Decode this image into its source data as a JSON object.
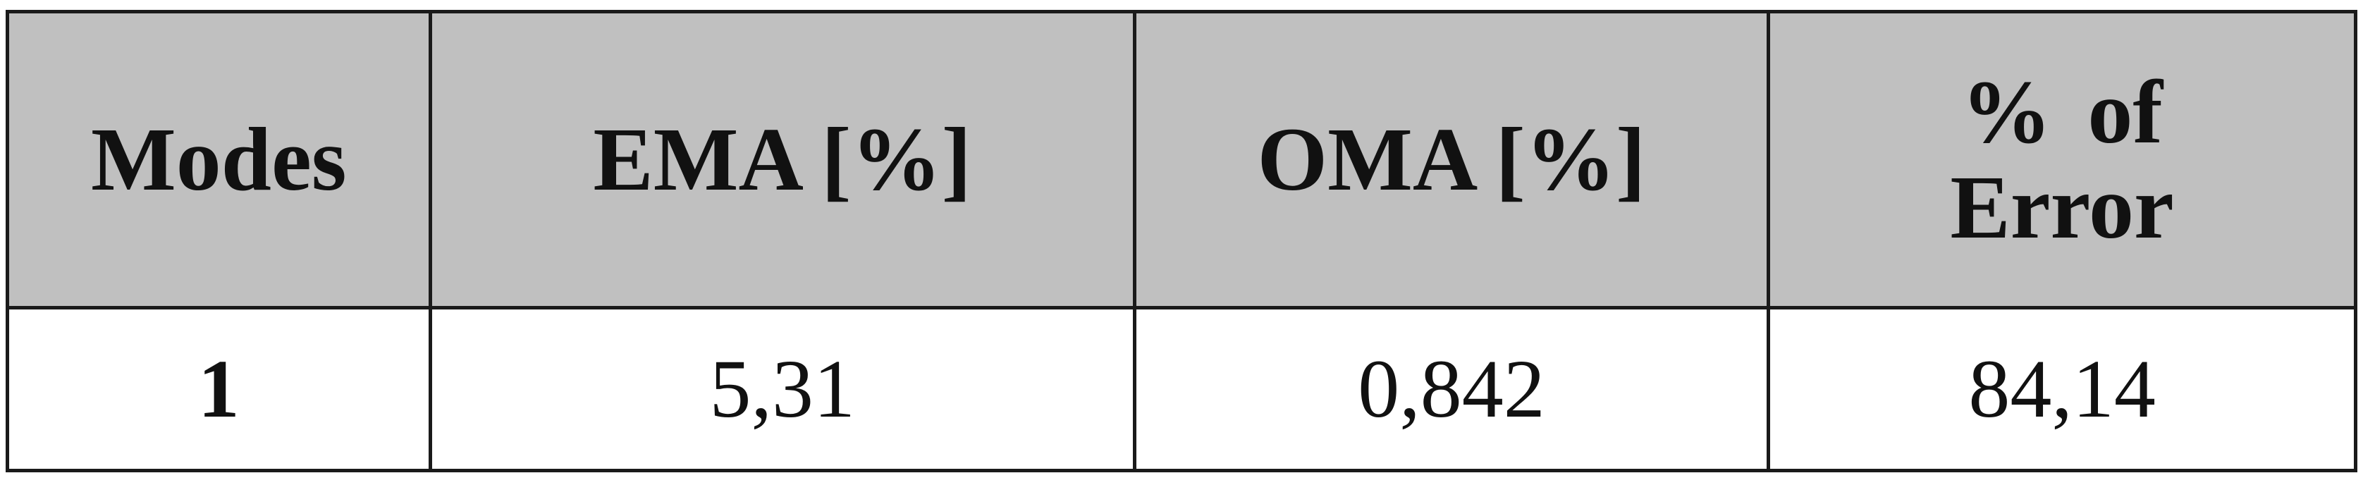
{
  "table": {
    "headers": [
      "Modes",
      "EMA [%]",
      "OMA [%]",
      "% of\nError"
    ],
    "rows": [
      {
        "mode": "1",
        "ema": "5,31",
        "oma": "0,842",
        "error": "84,14"
      }
    ]
  }
}
